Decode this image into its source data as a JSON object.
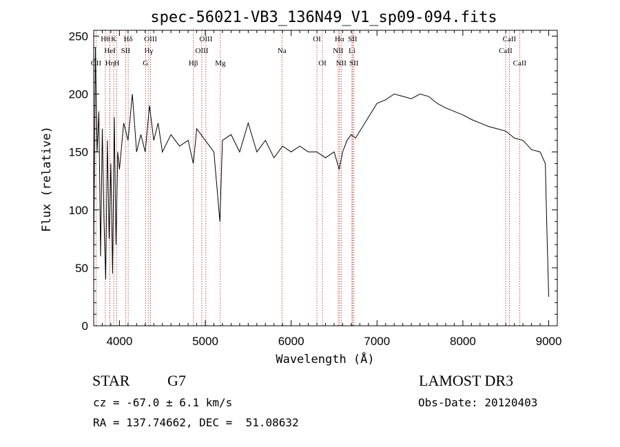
{
  "chart_data": {
    "type": "line",
    "title": "spec-56021-VB3_136N49_V1_sp09-094.fits",
    "xlabel": "Wavelength (Å)",
    "ylabel": "Flux (relative)",
    "xlim": [
      3700,
      9100
    ],
    "ylim": [
      0,
      255
    ],
    "x_ticks": [
      4000,
      5000,
      6000,
      7000,
      8000,
      9000
    ],
    "y_ticks": [
      0,
      50,
      100,
      150,
      200,
      250
    ],
    "grid": false,
    "series": [
      {
        "name": "flux",
        "color": "#000000",
        "x": [
          3700,
          3720,
          3740,
          3760,
          3780,
          3800,
          3820,
          3840,
          3860,
          3880,
          3900,
          3920,
          3940,
          3960,
          3980,
          4000,
          4050,
          4100,
          4150,
          4200,
          4250,
          4300,
          4350,
          4400,
          4450,
          4500,
          4600,
          4700,
          4800,
          4860,
          4900,
          5000,
          5100,
          5170,
          5200,
          5300,
          5400,
          5500,
          5600,
          5700,
          5800,
          5900,
          6000,
          6100,
          6200,
          6300,
          6400,
          6500,
          6560,
          6600,
          6650,
          6700,
          6750,
          6800,
          6900,
          7000,
          7100,
          7200,
          7300,
          7400,
          7500,
          7600,
          7700,
          7800,
          7900,
          8000,
          8100,
          8200,
          8300,
          8400,
          8500,
          8600,
          8700,
          8800,
          8900,
          8960,
          8980,
          9000
        ],
        "y": [
          60,
          240,
          150,
          185,
          60,
          170,
          90,
          40,
          160,
          75,
          140,
          45,
          180,
          70,
          150,
          135,
          175,
          160,
          200,
          150,
          165,
          150,
          190,
          160,
          175,
          150,
          165,
          155,
          160,
          140,
          170,
          160,
          150,
          90,
          160,
          165,
          150,
          175,
          150,
          160,
          145,
          155,
          150,
          155,
          150,
          150,
          145,
          150,
          135,
          150,
          160,
          165,
          162,
          168,
          180,
          192,
          195,
          200,
          198,
          196,
          200,
          198,
          192,
          188,
          185,
          182,
          178,
          175,
          172,
          170,
          168,
          162,
          160,
          152,
          150,
          140,
          80,
          25
        ]
      }
    ],
    "lines": [
      {
        "name": "OII",
        "x": 3727,
        "label": "OII",
        "row": 2
      },
      {
        "name": "H9",
        "x": 3835,
        "label": "Hθ",
        "row": 0
      },
      {
        "name": "Hη",
        "x": 3889,
        "label": "Hη",
        "row": 2
      },
      {
        "name": "K",
        "x": 3934,
        "label": "K",
        "row": 0
      },
      {
        "name": "H",
        "x": 3969,
        "label": "H",
        "row": 2
      },
      {
        "name": "HeI",
        "x": 3889,
        "label": "HeI",
        "row": 1
      },
      {
        "name": "SII",
        "x": 4072,
        "label": "SII",
        "row": 1
      },
      {
        "name": "Hδ",
        "x": 4102,
        "label": "Hδ",
        "row": 0
      },
      {
        "name": "OIII-4363",
        "x": 4363,
        "label": "OIII",
        "row": 0
      },
      {
        "name": "Hγ",
        "x": 4341,
        "label": "Hγ",
        "row": 1
      },
      {
        "name": "G",
        "x": 4304,
        "label": "G",
        "row": 2
      },
      {
        "name": "Hβ",
        "x": 4861,
        "label": "Hβ",
        "row": 2
      },
      {
        "name": "OIII-5007",
        "x": 5007,
        "label": "OIII",
        "row": 0
      },
      {
        "name": "OIII-4959",
        "x": 4959,
        "label": "OIII",
        "row": 1
      },
      {
        "name": "Mg",
        "x": 5175,
        "label": "Mg",
        "row": 2
      },
      {
        "name": "Na",
        "x": 5893,
        "label": "Na",
        "row": 1
      },
      {
        "name": "OI-6300",
        "x": 6300,
        "label": "OI",
        "row": 0
      },
      {
        "name": "OI-6364",
        "x": 6364,
        "label": "OI",
        "row": 2
      },
      {
        "name": "Hα",
        "x": 6563,
        "label": "Hα",
        "row": 0
      },
      {
        "name": "NII-6548",
        "x": 6548,
        "label": "NII",
        "row": 1
      },
      {
        "name": "NII-6583",
        "x": 6583,
        "label": "NII",
        "row": 2
      },
      {
        "name": "SII-6716",
        "x": 6716,
        "label": "SII",
        "row": 0
      },
      {
        "name": "Li",
        "x": 6708,
        "label": "Li",
        "row": 1
      },
      {
        "name": "SII-6731",
        "x": 6731,
        "label": "SII",
        "row": 2
      },
      {
        "name": "CaII-8498",
        "x": 8498,
        "label": "CaII",
        "row": 1
      },
      {
        "name": "CaII-8542",
        "x": 8542,
        "label": "CaII",
        "row": 0
      },
      {
        "name": "CaII-8662",
        "x": 8662,
        "label": "CaII",
        "row": 2
      }
    ]
  },
  "info": {
    "object_class": "STAR",
    "subclass": "G7",
    "survey": "LAMOST DR3",
    "redshift": "cz = -67.0 ± 6.1 km/s",
    "obs_date": "Obs-Date: 20120403",
    "coords": "RA = 137.74662, DEC =  51.08632"
  }
}
